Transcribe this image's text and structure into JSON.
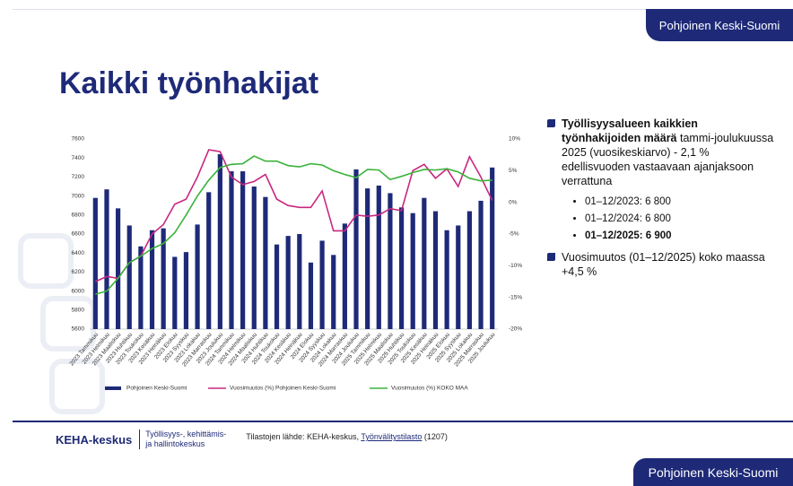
{
  "header": {
    "tab": "Pohjoinen Keski-Suomi",
    "title": "Kaikki työnhakijat"
  },
  "chart_data": {
    "type": "bar",
    "categories": [
      "2023 Tammikuu",
      "2023 Helmikuu",
      "2023 Maaliskuu",
      "2023 Huhtikuu",
      "2023 Toukokuu",
      "2023 Kesäkuu",
      "2023 Heinäkuu",
      "2023 Elokuu",
      "2023 Syyskuu",
      "2023 Lokakuu",
      "2023 Marraskuu",
      "2023 Joulukuu",
      "2024 Tammikuu",
      "2024 Helmikuu",
      "2024 Maaliskuu",
      "2024 Huhtikuu",
      "2024 Toukokuu",
      "2024 Kesäkuu",
      "2024 Heinäkuu",
      "2024 Elokuu",
      "2024 Syyskuu",
      "2024 Lokakuu",
      "2024 Marraskuu",
      "2024 Joulukuu",
      "2025 Tammikuu",
      "2025 Helmikuu",
      "2025 Maaliskuu",
      "2025 Huhtikuu",
      "2025 Toukokuu",
      "2025 Kesäkuu",
      "2025 Heinäkuu",
      "2025 Elokuu",
      "2025 Syyskuu",
      "2025 Lokakuu",
      "2025 Marraskuu",
      "2025 Joulukuu"
    ],
    "series": [
      {
        "name": "Pohjoinen Keski-Suomi",
        "type": "bar",
        "color": "#1e2a78",
        "values": [
          6980,
          7070,
          6870,
          6690,
          6470,
          6640,
          6660,
          6360,
          6410,
          6700,
          7040,
          7440,
          7260,
          7260,
          7100,
          6990,
          6490,
          6580,
          6600,
          6300,
          6530,
          6380,
          6710,
          7280,
          7080,
          7110,
          7030,
          6880,
          6820,
          6980,
          6840,
          6640,
          6690,
          6840,
          6950,
          7300
        ]
      },
      {
        "name": "Vuosimuutos (%) Pohjoinen Keski-Suomi",
        "type": "line",
        "axis": "y2",
        "color": "#c8287f",
        "values": [
          -12.5,
          -11.7,
          -12,
          -9.5,
          -8.5,
          -5,
          -3.5,
          -0.3,
          0.5,
          4,
          8.3,
          8,
          4,
          2.8,
          3.3,
          4.4,
          0.5,
          -0.5,
          -0.8,
          -0.8,
          1.8,
          -4.5,
          -4.5,
          -2,
          -2.2,
          -2,
          -1,
          -1.3,
          5,
          6,
          3.8,
          5.3,
          2.5,
          7.2,
          4,
          0.3
        ]
      },
      {
        "name": "Vuosimuutos (%)  KOKO MAA",
        "type": "line",
        "axis": "y2",
        "color": "#3cb33c",
        "values": [
          -14.5,
          -14,
          -12,
          -9.5,
          -8.5,
          -7.3,
          -6.5,
          -4.8,
          -2,
          1,
          3.5,
          5.5,
          6,
          6.1,
          7.3,
          6.5,
          6.5,
          5.8,
          5.6,
          6.1,
          5.9,
          5,
          4.4,
          3.9,
          5.2,
          5.1,
          3.6,
          4.1,
          4.7,
          5.2,
          5.1,
          5.3,
          4.8,
          3.8,
          3.4,
          3.5
        ]
      }
    ],
    "ylim": [
      5600,
      7600
    ],
    "yticks": [
      5600,
      5800,
      6000,
      6200,
      6400,
      6600,
      6800,
      7000,
      7200,
      7400,
      7600
    ],
    "y2lim": [
      -20,
      10
    ],
    "y2ticks": [
      {
        "value": -20,
        "label": "-20%"
      },
      {
        "value": -15,
        "label": "-15%"
      },
      {
        "value": -10,
        "label": "-10%"
      },
      {
        "value": -5,
        "label": "-5%"
      },
      {
        "value": 0,
        "label": "0%"
      },
      {
        "value": 5,
        "label": "5%"
      },
      {
        "value": 10,
        "label": "10%"
      }
    ],
    "grid": false,
    "legend": "bottom"
  },
  "panel": {
    "bullet1_bold": "Työllisyysalueen kaikkien työnhakijoiden määrä",
    "bullet1_rest": "tammi-joulukuussa 2025 (vuosikeskiarvo) - 2,1 % edellisvuoden vastaavaan ajanjaksoon verrattuna",
    "sub": [
      "01–12/2023: 6 800",
      "01–12/2024: 6 800",
      "01–12/2025: 6 900"
    ],
    "bullet2": "Vuosimuutos (01–12/2025) koko maassa +4,5 %"
  },
  "footer": {
    "logo": "KEHA-keskus",
    "org_line1": "Työllisyys-, kehittämis-",
    "org_line2": "ja hallintokeskus",
    "source": "Tilastojen lähde: KEHA-keskus,",
    "source_link": "Työnvälitystilasto",
    "source_code": "(1207)"
  }
}
